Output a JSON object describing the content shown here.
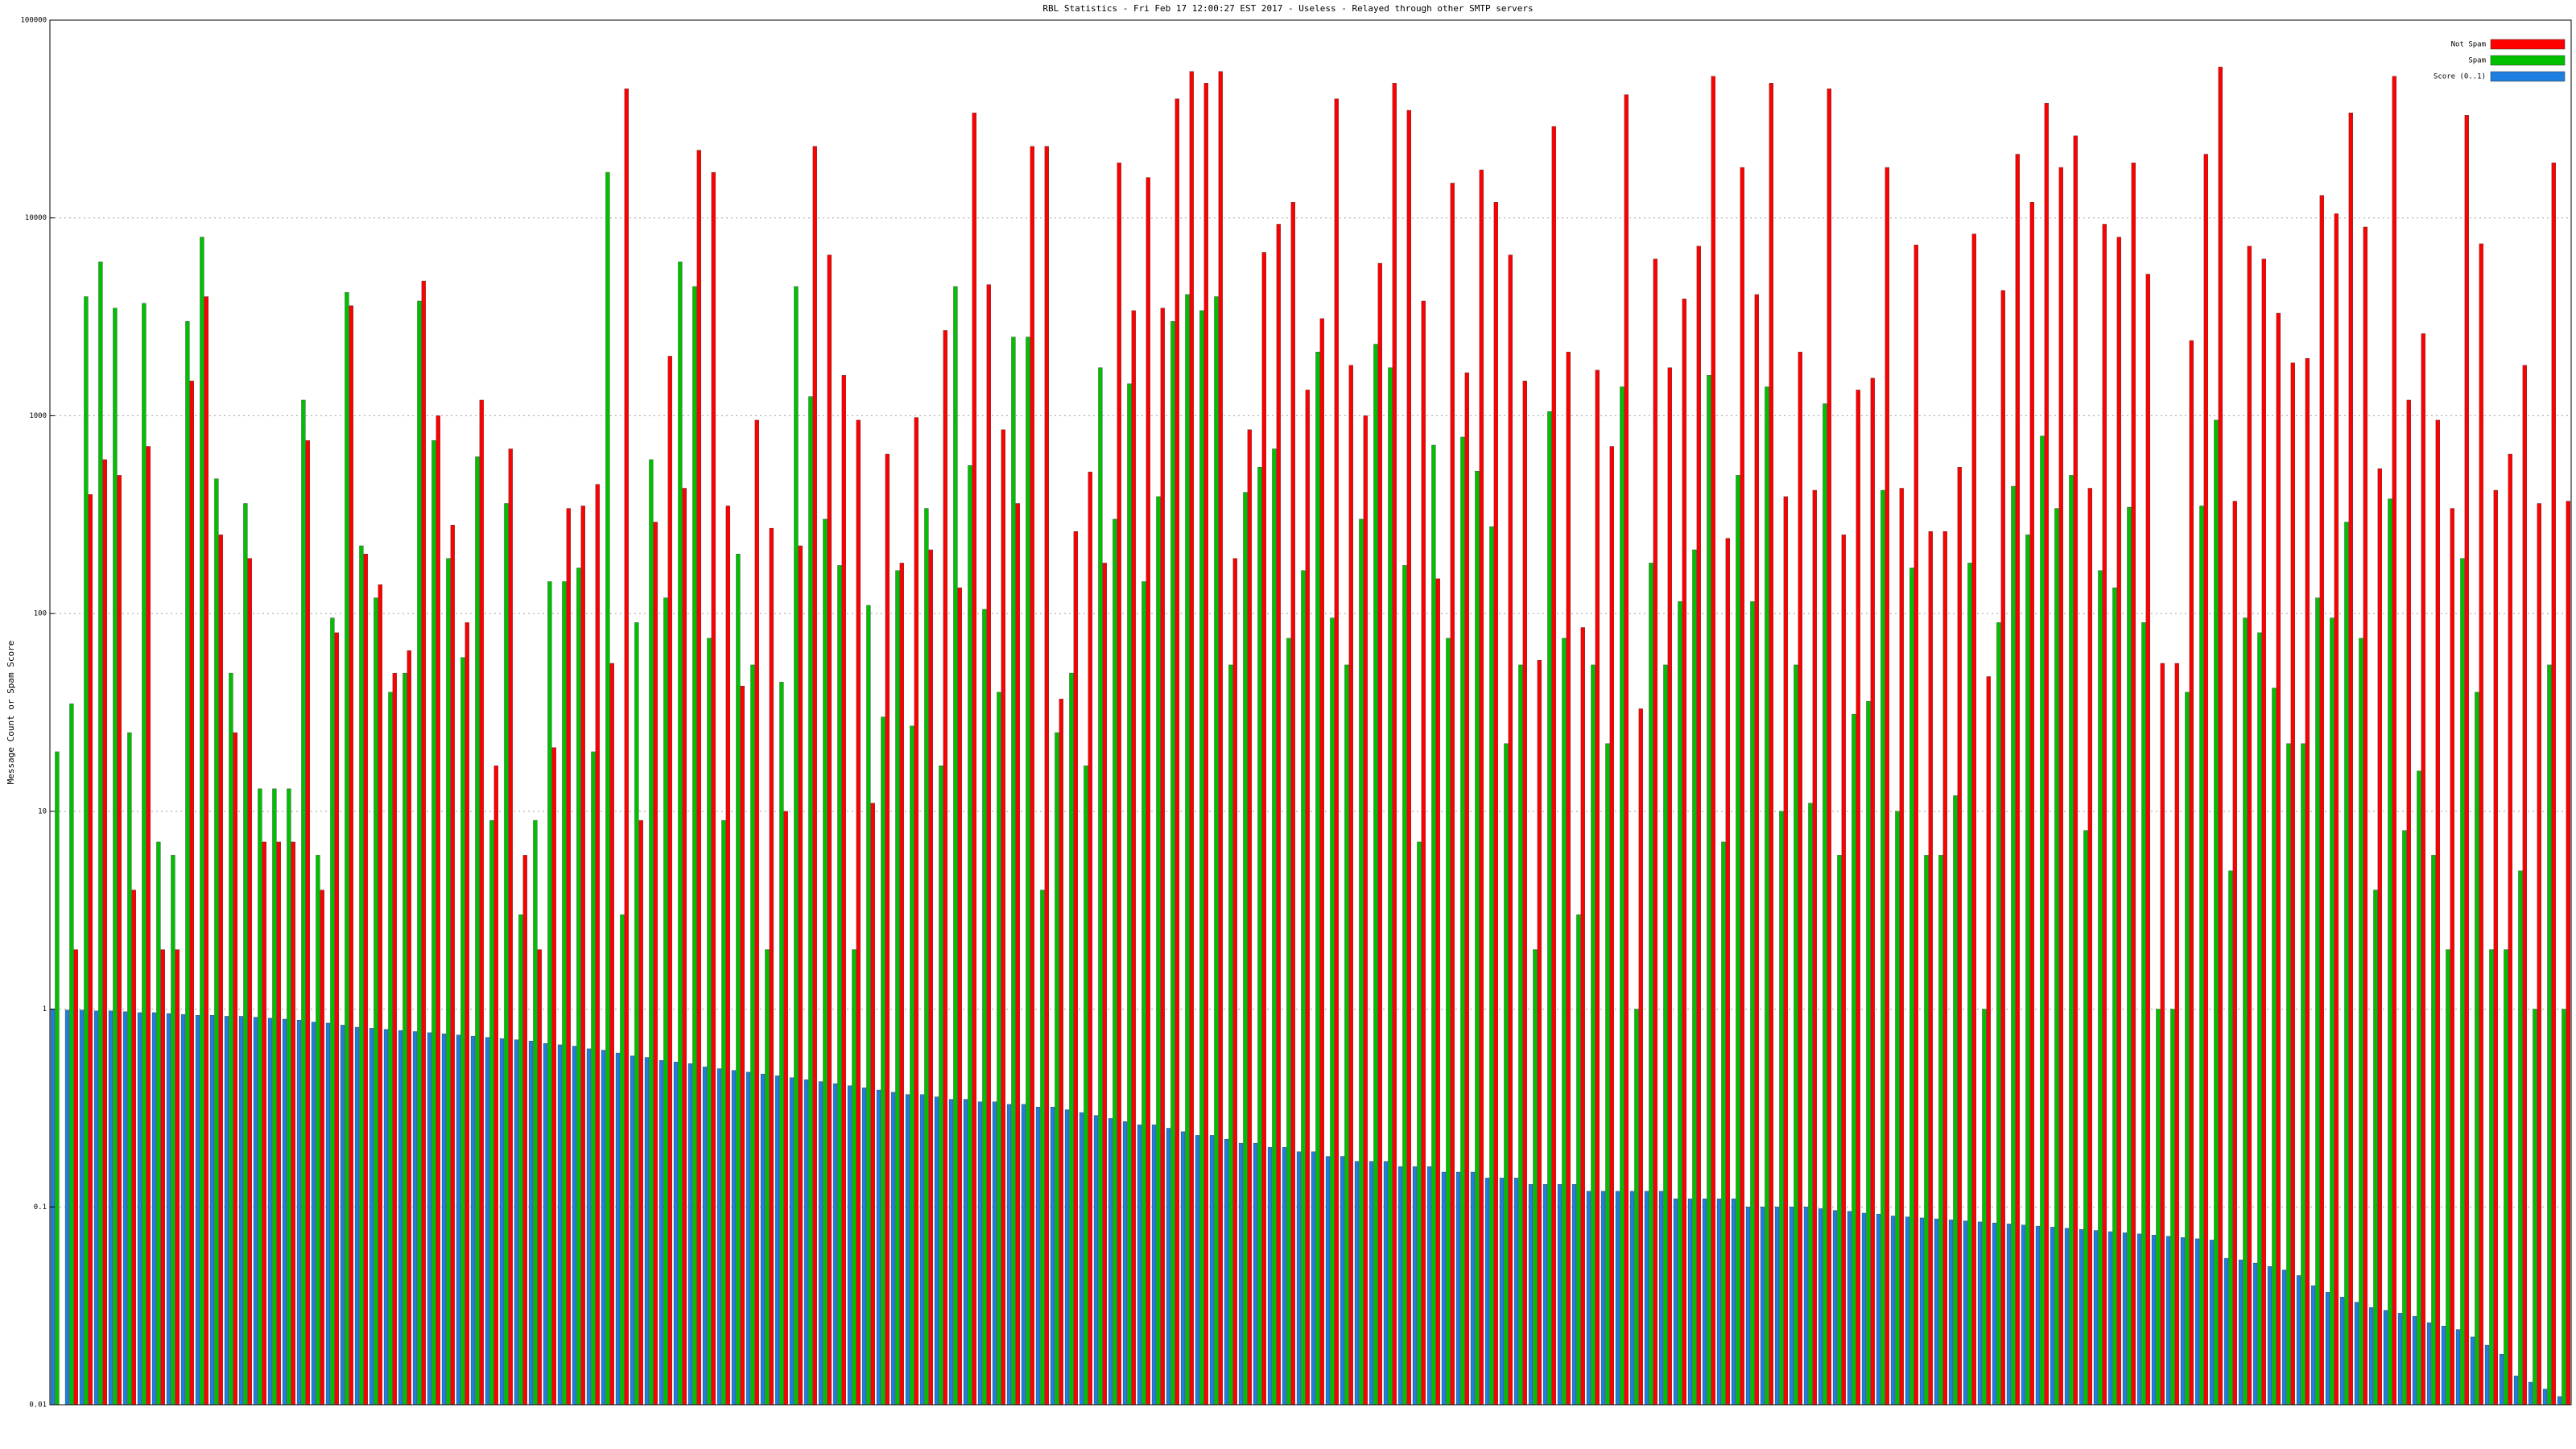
{
  "chart_data": {
    "type": "bar",
    "title": "RBL Statistics - Fri Feb 17 12:00:27 EST 2017 - Useless - Relayed through other SMTP servers",
    "y_label": "Message Count or Spam Score",
    "log_scale": true,
    "grid": true,
    "legend": "top-right",
    "ylim": [
      0.01,
      100000
    ],
    "yticks": [
      0.01,
      0.1,
      1,
      10,
      100,
      1000,
      10000,
      100000
    ],
    "categories": [
      null,
      null,
      null,
      null,
      null,
      null,
      null,
      null,
      null,
      null,
      null,
      null,
      null,
      null,
      null,
      null,
      null,
      null,
      null,
      null,
      null,
      null,
      null,
      null,
      null,
      null,
      null,
      null,
      null,
      null,
      null,
      null,
      null,
      null,
      null,
      null,
      null,
      null,
      null,
      null,
      null,
      null,
      null,
      null,
      null,
      null,
      null,
      null,
      null,
      null,
      null,
      null,
      null,
      null,
      null,
      null,
      null,
      null,
      null,
      null,
      null,
      null,
      null,
      null,
      null,
      null,
      null,
      null,
      null,
      null,
      null,
      null,
      null,
      null,
      null,
      null,
      null,
      null,
      null,
      null,
      null,
      null,
      null,
      null,
      null,
      null,
      null,
      null,
      null,
      null,
      null,
      null,
      null,
      null,
      null,
      null,
      null,
      null,
      null,
      null,
      null,
      null,
      null,
      null,
      null,
      null,
      null,
      null,
      null,
      null,
      null,
      null,
      null,
      null,
      null,
      null,
      null,
      null,
      null,
      null,
      null,
      null,
      null,
      null,
      null,
      null,
      null,
      null,
      null,
      null,
      null,
      null,
      null,
      null,
      null,
      null,
      null,
      null,
      null,
      null,
      null,
      null,
      null,
      null,
      null,
      null,
      null,
      null,
      null,
      null,
      null,
      null,
      null,
      null,
      null,
      null,
      null,
      null,
      null,
      null,
      null,
      null,
      null,
      null,
      null,
      null,
      null,
      null,
      null,
      null,
      null,
      null,
      null,
      null
    ],
    "series": [
      {
        "name": "Not Spam",
        "color": "#ff0000",
        "values": [
          null,
          2,
          400,
          600,
          500,
          4,
          700,
          2,
          2,
          1500,
          4000,
          250,
          25,
          190,
          7,
          7,
          7,
          750,
          4,
          80,
          3600,
          200,
          140,
          50,
          65,
          4800,
          1000,
          280,
          90,
          1200,
          17,
          680,
          6,
          2,
          21,
          340,
          350,
          450,
          56,
          45000,
          9,
          290,
          2000,
          430,
          22000,
          17000,
          350,
          43,
          950,
          270,
          10,
          220,
          23000,
          6500,
          1600,
          950,
          11,
          640,
          180,
          980,
          210,
          2700,
          135,
          34000,
          4600,
          850,
          360,
          23000,
          23000,
          37,
          260,
          520,
          180,
          19000,
          3400,
          16000,
          3500,
          40000,
          55000,
          48000,
          55000,
          190,
          850,
          6700,
          9300,
          12000,
          1350,
          3100,
          40000,
          1800,
          1000,
          5900,
          48000,
          35000,
          3800,
          150,
          15000,
          1650,
          17500,
          12000,
          6500,
          1500,
          58,
          29000,
          2100,
          85,
          1700,
          700,
          42000,
          33,
          6200,
          1750,
          3900,
          7200,
          52000,
          240,
          18000,
          4100,
          48000,
          390,
          2100,
          420,
          45000,
          250,
          1350,
          1550,
          18000,
          430,
          7300,
          260,
          260,
          550,
          8300,
          48,
          4300,
          21000,
          12000,
          38000,
          18000,
          26000,
          430,
          9300,
          8000,
          19000,
          5200,
          56,
          56,
          2400,
          21000,
          58000,
          370,
          7200,
          6200,
          3300,
          1850,
          1950,
          13000,
          10500,
          34000,
          9000,
          540,
          52000,
          1200,
          2600,
          950,
          340,
          33000,
          7400,
          420,
          640,
          1800,
          360,
          19000,
          370
        ]
      },
      {
        "name": "Spam",
        "color": "#00c000",
        "values": [
          20,
          35,
          4000,
          6000,
          3500,
          25,
          3700,
          7,
          6,
          3000,
          8000,
          480,
          50,
          360,
          13,
          13,
          13,
          1200,
          6,
          95,
          4200,
          220,
          120,
          40,
          50,
          3800,
          750,
          190,
          60,
          620,
          9,
          360,
          3,
          9,
          145,
          145,
          170,
          20,
          17000,
          3,
          90,
          600,
          120,
          6000,
          4500,
          75,
          9,
          200,
          55,
          2,
          45,
          4500,
          1250,
          300,
          175,
          2,
          110,
          30,
          165,
          27,
          340,
          17,
          4500,
          560,
          105,
          40,
          2500,
          2500,
          4,
          25,
          50,
          17,
          1750,
          300,
          1450,
          145,
          390,
          3000,
          4100,
          3400,
          4000,
          55,
          410,
          550,
          680,
          75,
          165,
          2100,
          95,
          55,
          300,
          2300,
          1750,
          175,
          7,
          710,
          75,
          780,
          525,
          275,
          22,
          55,
          2,
          1050,
          75,
          3,
          55,
          22,
          1400,
          1,
          180,
          55,
          115,
          210,
          1600,
          7,
          500,
          115,
          1400,
          10,
          55,
          11,
          1150,
          6,
          31,
          36,
          420,
          10,
          170,
          6,
          6,
          12,
          180,
          1,
          90,
          440,
          250,
          790,
          340,
          500,
          8,
          165,
          135,
          345,
          90,
          1,
          1,
          40,
          350,
          950,
          5,
          95,
          80,
          42,
          22,
          22,
          120,
          95,
          290,
          75,
          4,
          380,
          8,
          16,
          6,
          2,
          190,
          40,
          2,
          2,
          5,
          1,
          55,
          1
        ]
      },
      {
        "name": "Score (0..1)",
        "color": "#1e7fe0",
        "values": [
          1.0,
          0.99,
          0.99,
          0.98,
          0.98,
          0.97,
          0.96,
          0.96,
          0.95,
          0.94,
          0.93,
          0.93,
          0.92,
          0.92,
          0.91,
          0.9,
          0.89,
          0.88,
          0.86,
          0.85,
          0.83,
          0.81,
          0.8,
          0.79,
          0.78,
          0.77,
          0.76,
          0.75,
          0.74,
          0.73,
          0.72,
          0.71,
          0.7,
          0.69,
          0.67,
          0.66,
          0.65,
          0.63,
          0.62,
          0.6,
          0.58,
          0.57,
          0.55,
          0.54,
          0.53,
          0.51,
          0.5,
          0.49,
          0.48,
          0.47,
          0.46,
          0.45,
          0.44,
          0.43,
          0.42,
          0.41,
          0.4,
          0.39,
          0.38,
          0.37,
          0.37,
          0.36,
          0.35,
          0.35,
          0.34,
          0.34,
          0.33,
          0.33,
          0.32,
          0.32,
          0.31,
          0.3,
          0.29,
          0.28,
          0.27,
          0.26,
          0.26,
          0.25,
          0.24,
          0.23,
          0.23,
          0.22,
          0.21,
          0.21,
          0.2,
          0.2,
          0.19,
          0.19,
          0.18,
          0.18,
          0.17,
          0.17,
          0.17,
          0.16,
          0.16,
          0.16,
          0.15,
          0.15,
          0.15,
          0.14,
          0.14,
          0.14,
          0.13,
          0.13,
          0.13,
          0.13,
          0.12,
          0.12,
          0.12,
          0.12,
          0.12,
          0.12,
          0.11,
          0.11,
          0.11,
          0.11,
          0.11,
          0.1,
          0.1,
          0.1,
          0.1,
          0.1,
          0.098,
          0.096,
          0.095,
          0.093,
          0.092,
          0.09,
          0.089,
          0.088,
          0.087,
          0.086,
          0.085,
          0.084,
          0.083,
          0.082,
          0.081,
          0.08,
          0.079,
          0.078,
          0.077,
          0.076,
          0.075,
          0.074,
          0.073,
          0.072,
          0.071,
          0.07,
          0.069,
          0.068,
          0.055,
          0.054,
          0.052,
          0.05,
          0.048,
          0.045,
          0.04,
          0.037,
          0.035,
          0.033,
          0.031,
          0.03,
          0.029,
          0.028,
          0.026,
          0.025,
          0.024,
          0.022,
          0.02,
          0.018,
          0.014,
          0.013,
          0.012,
          0.011
        ]
      }
    ]
  }
}
